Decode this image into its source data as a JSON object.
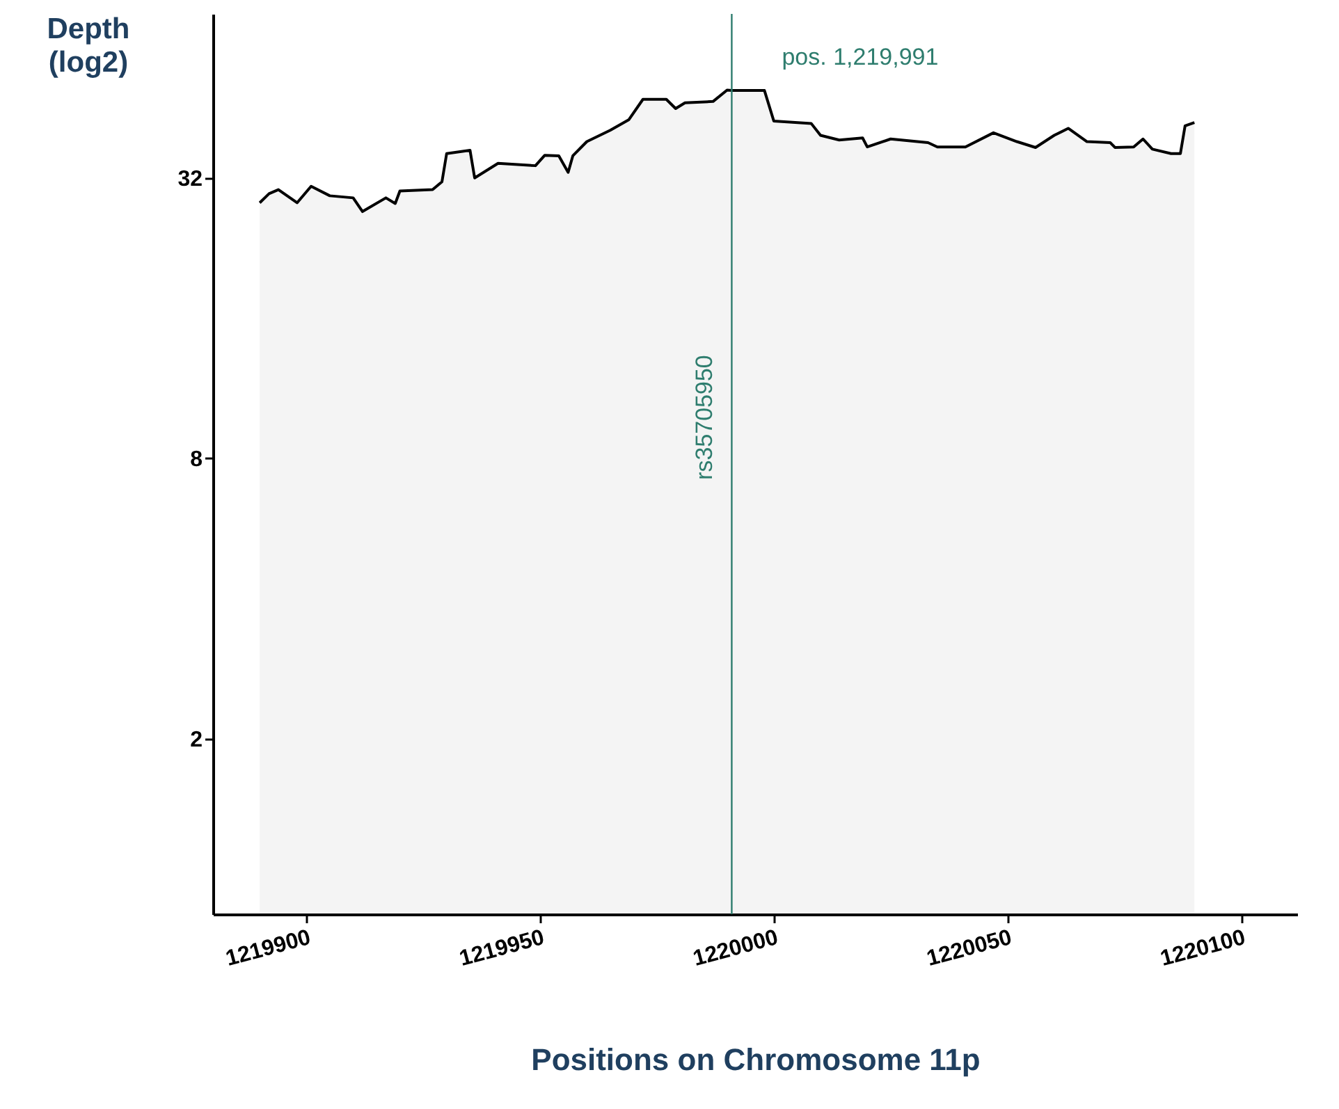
{
  "chart_data": {
    "type": "area",
    "xlabel": "Positions on Chromosome 11p",
    "ylabel": "Depth (log2)",
    "log": "y",
    "grid": false,
    "line_style": "solid",
    "xlim": [
      1219880,
      1220112
    ],
    "xticks": [
      1219900,
      1219950,
      1220000,
      1220050,
      1220100
    ],
    "ylim": [
      0.84,
      72
    ],
    "yticks": [
      2,
      8,
      32
    ],
    "series": [
      {
        "color": "#000000",
        "x": [
          1219890,
          1219892,
          1219894,
          1219898,
          1219901,
          1219905,
          1219910,
          1219912,
          1219917,
          1219919,
          1219920,
          1219927,
          1219929,
          1219930,
          1219935,
          1219936,
          1219941,
          1219949,
          1219951,
          1219954,
          1219956,
          1219957,
          1219960,
          1219965,
          1219969,
          1219972,
          1219977,
          1219979,
          1219981,
          1219987,
          1219990,
          1219991,
          1219998,
          1220000,
          1220008,
          1220010,
          1220014,
          1220019,
          1220020,
          1220025,
          1220033,
          1220035,
          1220041,
          1220047,
          1220052,
          1220056,
          1220060,
          1220063,
          1220067,
          1220072,
          1220073,
          1220077,
          1220079,
          1220081,
          1220085,
          1220087,
          1220088,
          1220090
        ],
        "values": [
          28.3,
          29.6,
          30.2,
          28.3,
          30.7,
          29.3,
          29.0,
          27.1,
          29.0,
          28.2,
          30.0,
          30.2,
          31.4,
          36.1,
          36.7,
          32.0,
          34.4,
          34.0,
          35.8,
          35.7,
          32.9,
          35.7,
          38.3,
          40.5,
          42.7,
          47.2,
          47.2,
          45.1,
          46.4,
          46.7,
          49.4,
          49.3,
          49.3,
          42.4,
          41.9,
          39.5,
          38.6,
          39.0,
          37.3,
          38.8,
          38.1,
          37.3,
          37.3,
          40.0,
          38.3,
          37.2,
          39.5,
          40.9,
          38.3,
          38.1,
          37.2,
          37.3,
          38.8,
          36.9,
          36.1,
          36.1,
          41.4,
          42.1
        ]
      }
    ],
    "ref_lines": [
      {
        "axis": "x",
        "value": 1219991,
        "label": "rs35705950",
        "color": "#2e7d6e"
      }
    ],
    "annotations": [
      {
        "text": "pos. 1,219,991",
        "x": 1219991,
        "y": 58
      }
    ]
  }
}
